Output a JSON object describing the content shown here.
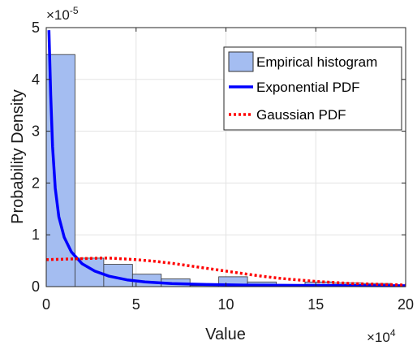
{
  "chart_data": {
    "type": "bar",
    "xlabel": "Value",
    "ylabel": "Probability Density",
    "xlim": [
      0,
      200000
    ],
    "ylim": [
      0,
      5e-05
    ],
    "x_ticks": [
      0,
      5,
      10,
      15,
      20
    ],
    "y_ticks": [
      0,
      1,
      2,
      3,
      4,
      5
    ],
    "x_multiplier": "×10",
    "x_multiplier_exp": "4",
    "y_multiplier": "×10",
    "y_multiplier_exp": "-5",
    "grid": true,
    "legend_position": "top-right",
    "histogram": {
      "name": "Empirical histogram",
      "bin_width": 16000,
      "bin_edges_start": [
        0,
        16000,
        32000,
        48000,
        64000,
        80000,
        96000,
        112000,
        128000,
        144000,
        160000,
        176000
      ],
      "values": [
        4.48e-05,
        5.5e-06,
        4.3e-06,
        2.4e-06,
        1.5e-06,
        2e-07,
        1.9e-06,
        9e-07,
        2e-07,
        9e-07,
        7e-07,
        6e-07
      ],
      "color": "#a4bdf1",
      "edge_color": "#333333"
    },
    "series": [
      {
        "name": "Exponential PDF",
        "style": "solid",
        "color": "#0000ff",
        "x": [
          1500,
          2500,
          3500,
          5000,
          7000,
          10000,
          14000,
          20000,
          27000,
          35000,
          45000,
          55000,
          70000,
          90000,
          110000,
          130000,
          150000,
          170000,
          190000,
          200000
        ],
        "y": [
          4.95e-05,
          3.7e-05,
          2.7e-05,
          1.9e-05,
          1.35e-05,
          9.5e-06,
          6.7e-06,
          4.4e-06,
          3e-06,
          2e-06,
          1.3e-06,
          9e-07,
          6e-07,
          4e-07,
          3e-07,
          2.5e-07,
          2e-07,
          2e-07,
          1.8e-07,
          1.8e-07
        ]
      },
      {
        "name": "Gaussian PDF",
        "style": "dotted",
        "color": "#ff0000",
        "x": [
          0,
          10000,
          20000,
          30000,
          35000,
          40000,
          50000,
          60000,
          70000,
          80000,
          90000,
          100000,
          110000,
          120000,
          130000,
          140000,
          150000,
          160000,
          170000,
          180000,
          190000,
          200000
        ],
        "y": [
          5.2e-06,
          5.3e-06,
          5.4e-06,
          5.5e-06,
          5.5e-06,
          5.4e-06,
          5.2e-06,
          4.9e-06,
          4.5e-06,
          4e-06,
          3.5e-06,
          3e-06,
          2.5e-06,
          2e-06,
          1.6e-06,
          1.3e-06,
          1e-06,
          8e-07,
          6e-07,
          5e-07,
          4e-07,
          3e-07
        ]
      }
    ]
  }
}
